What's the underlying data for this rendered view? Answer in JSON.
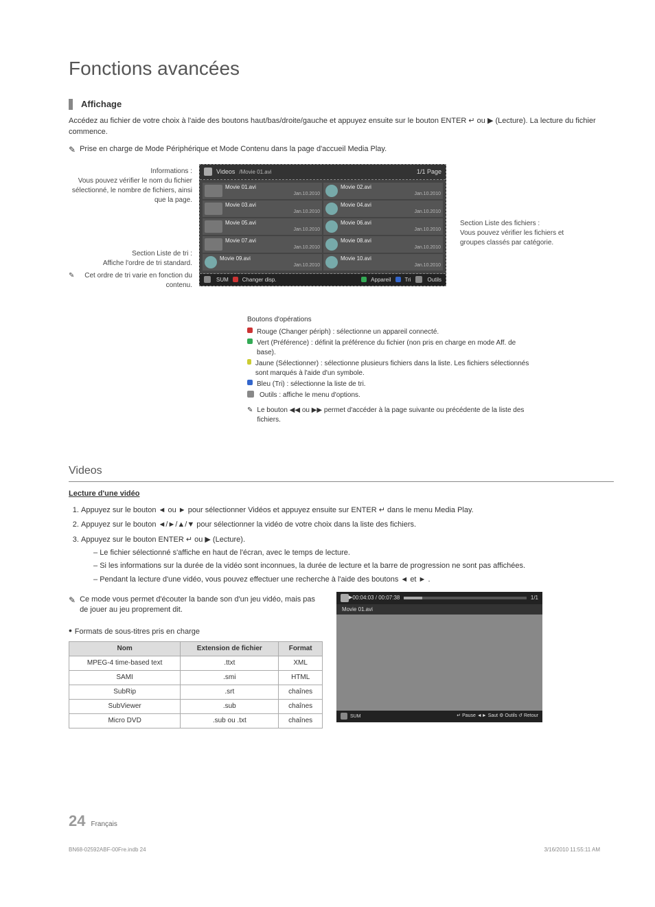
{
  "page_title": "Fonctions avancées",
  "section_affichage": {
    "heading": "Affichage",
    "intro": "Accédez au fichier de votre choix à l'aide des boutons haut/bas/droite/gauche et appuyez ensuite sur le bouton ENTER ↵ ou ▶ (Lecture). La lecture du fichier commence.",
    "note": "Prise en charge de Mode Périphérique et Mode Contenu dans la page d'accueil Media Play."
  },
  "annotations": {
    "info_title": "Informations :",
    "info_body": "Vous pouvez vérifier le nom du fichier sélectionné, le nombre de fichiers, ainsi que la page.",
    "sort_title": "Section Liste de tri :",
    "sort_body": "Affiche l'ordre de tri standard.",
    "sort_note": "Cet ordre de tri varie en fonction du contenu.",
    "files_title": "Section Liste des fichiers :",
    "files_body": "Vous pouvez vérifier les fichiers et groupes classés par catégorie."
  },
  "tv": {
    "header_left_label": "Videos",
    "header_path": "/Movie 01.avi",
    "header_page": "1/1 Page",
    "files": [
      {
        "name": "Movie 01.avi",
        "date": "Jan.10.2010",
        "thumb": true
      },
      {
        "name": "Movie 02.avi",
        "date": "Jan.10.2010",
        "thumb": false
      },
      {
        "name": "Movie 03.avi",
        "date": "Jan.10.2010",
        "thumb": true
      },
      {
        "name": "Movie 04.avi",
        "date": "Jan.10.2010",
        "thumb": false
      },
      {
        "name": "Movie 05.avi",
        "date": "Jan.10.2010",
        "thumb": true
      },
      {
        "name": "Movie 06.avi",
        "date": "Jan.10.2010",
        "thumb": false
      },
      {
        "name": "Movie 07.avi",
        "date": "Jan.10.2010",
        "thumb": true
      },
      {
        "name": "Movie 08.avi",
        "date": "Jan.10.2010",
        "thumb": false
      },
      {
        "name": "Movie 09.avi",
        "date": "Jan.10.2010",
        "thumb": false
      },
      {
        "name": "Movie 10.avi",
        "date": "Jan.10.2010",
        "thumb": false
      }
    ],
    "footer_left_sum": "SUM",
    "footer_left_change": "Changer disp.",
    "footer_right_device": "Appareil",
    "footer_right_sort": "Tri",
    "footer_right_tools": "Outils"
  },
  "ops": {
    "lead": "Boutons d'opérations",
    "red": "Rouge (Changer périph) : sélectionne un appareil connecté.",
    "green": "Vert (Préférence) : définit la préférence du fichier (non pris en charge en mode Aff. de base).",
    "yellow": "Jaune (Sélectionner) : sélectionne plusieurs fichiers dans la liste. Les fichiers sélectionnés sont marqués à l'aide d'un symbole.",
    "blue": "Bleu (Tri) : sélectionne la liste de tri.",
    "tools": "Outils : affiche le menu d'options.",
    "nav_note": "Le bouton ◀◀ ou ▶▶ permet d'accéder à la page suivante ou précédente de la liste des fichiers."
  },
  "videos": {
    "title": "Videos",
    "subhead": "Lecture d'une vidéo",
    "step1": "Appuyez sur le bouton ◄ ou ► pour sélectionner Vidéos et appuyez ensuite sur ENTER ↵ dans le menu Media Play.",
    "step2": "Appuyez sur le bouton ◄/►/▲/▼ pour sélectionner la vidéo de votre choix dans la liste des fichiers.",
    "step3": "Appuyez sur le bouton ENTER ↵ ou ▶ (Lecture).",
    "d1": "Le fichier sélectionné s'affiche en haut de l'écran, avec le temps de lecture.",
    "d2": "Si les informations sur la durée de la vidéo sont inconnues, la durée de lecture et la barre de progression ne sont pas affichées.",
    "d3": "Pendant la lecture d'une vidéo, vous pouvez effectuer une recherche à l'aide des boutons ◄ et ► .",
    "mode_note": "Ce mode vous permet d'écouter la bande son d'un jeu vidéo, mais pas de jouer au jeu proprement dit.",
    "subs_bullet": "Formats de sous-titres pris en charge"
  },
  "subs_table": {
    "columns": [
      "Nom",
      "Extension de fichier",
      "Format"
    ],
    "rows": [
      [
        "MPEG-4 time-based text",
        ".ttxt",
        "XML"
      ],
      [
        "SAMI",
        ".smi",
        "HTML"
      ],
      [
        "SubRip",
        ".srt",
        "chaînes"
      ],
      [
        "SubViewer",
        ".sub",
        "chaînes"
      ],
      [
        "Micro DVD",
        ".sub ou .txt",
        "chaînes"
      ]
    ]
  },
  "player": {
    "time": "00:04:03 / 00:07:38",
    "page": "1/1",
    "file": "Movie 01.avi",
    "sum": "SUM",
    "pause": "Pause",
    "skip": "Saut",
    "tools": "Outils",
    "return": "Retour"
  },
  "page_footer": {
    "num": "24",
    "lang": "Français"
  },
  "doc_meta": {
    "left": "BN68-02592ABF-00Fre.indb   24",
    "right": "3/16/2010   11:55:11 AM"
  },
  "colors": {
    "page_title": "#666666",
    "panel_bg": "#2b2b2b",
    "red": "#cc3333",
    "green": "#33aa55",
    "yellow": "#cccc33",
    "blue": "#3366cc"
  }
}
